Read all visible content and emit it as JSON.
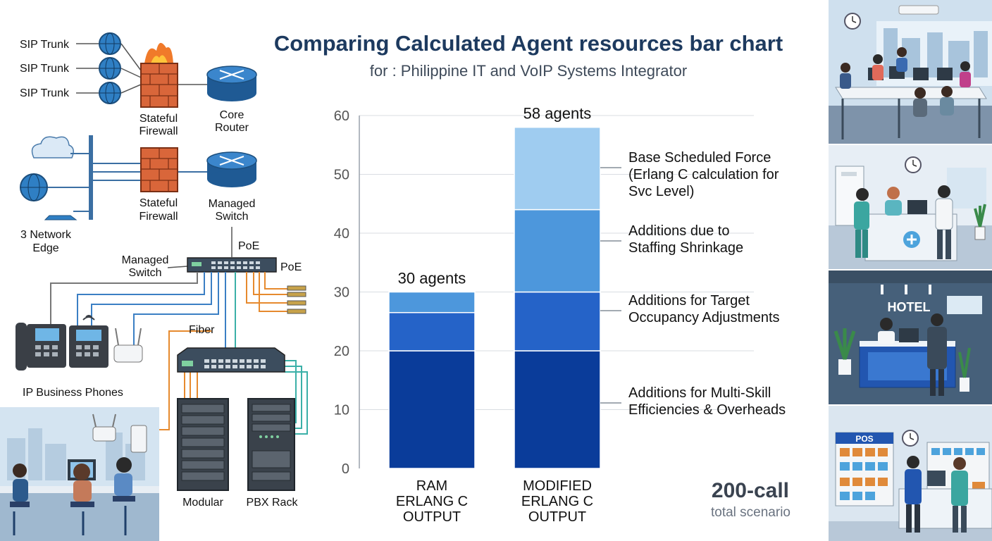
{
  "chart_data": {
    "type": "bar",
    "stacked": true,
    "title": "Comparing Calculated Agent resources bar chart",
    "subtitle": "for : Philippine IT and VoIP Systems Integrator",
    "categories": [
      "RAM\nERLANG C\nOUTPUT",
      "MODIFIED\nERLANG C\nOUTPUT"
    ],
    "category_lines": [
      [
        "RAM",
        "ERLANG C",
        "OUTPUT"
      ],
      [
        "MODIFIED",
        "ERLANG C",
        "OUTPUT"
      ]
    ],
    "totals": [
      "30 agents",
      "58 agents"
    ],
    "ylim": [
      0,
      60
    ],
    "yticks": [
      0,
      10,
      20,
      30,
      40,
      50,
      60
    ],
    "grid": true,
    "series": [
      {
        "name": "Base Scheduled Force (Erlang C calculation for Svc Level)",
        "label_lines": [
          "Base Scheduled Force",
          "(Erlang C calculation for",
          "Svc Level)"
        ],
        "values": [
          20,
          20
        ],
        "color": "#0a3c9a"
      },
      {
        "name": "Additions due to Staffing Shrinkage",
        "label_lines": [
          "Additions due to",
          "Staffing Shrinkage"
        ],
        "values": [
          6.5,
          10
        ],
        "color": "#2563c8"
      },
      {
        "name": "Additions for Target Occupancy Adjustments",
        "label_lines": [
          "Additions for Target",
          "Occupancy Adjustments"
        ],
        "values": [
          3.5,
          14
        ],
        "color": "#4d97dc"
      },
      {
        "name": "Additions for Multi-Skill Efficiencies & Overheads",
        "label_lines": [
          "Additions for Multi-Skill",
          "Efficiencies & Overheads"
        ],
        "values": [
          0,
          14
        ],
        "color": "#9fccf0"
      }
    ]
  },
  "scenario": {
    "main": "200-call",
    "sub": "total scenario"
  },
  "network": {
    "sip_trunks": [
      "SIP Trunk",
      "SIP Trunk",
      "SIP Trunk"
    ],
    "firewall_1": [
      "Stateful",
      "Firewall"
    ],
    "core_router": [
      "Core",
      "Router"
    ],
    "firewall_2": [
      "Stateful",
      "Firewall"
    ],
    "managed_switch_top": [
      "Managed",
      "Switch"
    ],
    "network_edge": [
      "3 Network",
      "Edge"
    ],
    "poe_top": "PoE",
    "managed_switch_left": [
      "Managed",
      "Switch"
    ],
    "poe_right": "PoE",
    "fiber": "Fiber",
    "ip_phones": "IP Business Phones",
    "modular": "Modular",
    "pbx_rack": "PBX Rack"
  },
  "illustrations": {
    "hotel_sign": "HOTEL",
    "pos_sign": "POS"
  },
  "colors": {
    "title": "#1d3a5f",
    "grid": "#d9dde2",
    "globe": "#2f7fc4",
    "firewall": "#d9663a",
    "router": "#2f74b8"
  }
}
